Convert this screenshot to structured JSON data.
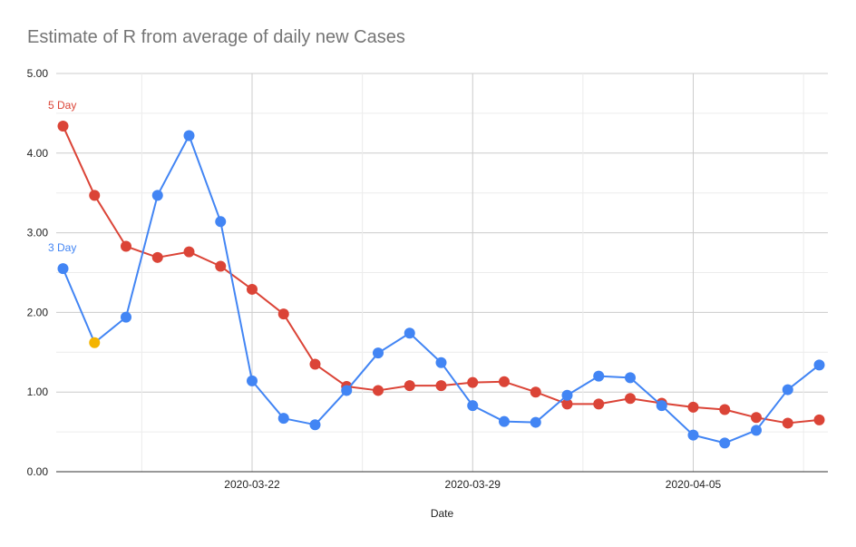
{
  "chart_data": {
    "type": "line",
    "title": "Estimate of R from average of daily new Cases",
    "xlabel": "Date",
    "ylabel": "",
    "ylim": [
      0,
      5
    ],
    "yticks": [
      "0.00",
      "1.00",
      "2.00",
      "3.00",
      "4.00",
      "5.00"
    ],
    "x_tick_labels": [
      {
        "label": "2020-03-22",
        "index": 6
      },
      {
        "label": "2020-03-29",
        "index": 13
      },
      {
        "label": "2020-04-05",
        "index": 20
      }
    ],
    "grid": true,
    "series": [
      {
        "name": "5 Day",
        "color": "#db4437",
        "values": [
          4.34,
          3.47,
          2.83,
          2.69,
          2.76,
          2.58,
          2.29,
          1.98,
          1.35,
          1.07,
          1.02,
          1.08,
          1.08,
          1.12,
          1.13,
          1.0,
          0.85,
          0.85,
          0.92,
          0.86,
          0.81,
          0.78,
          0.68,
          0.61,
          0.65
        ]
      },
      {
        "name": "3 Day",
        "color": "#4285f4",
        "values": [
          2.55,
          1.62,
          1.94,
          3.47,
          4.22,
          3.14,
          1.14,
          0.67,
          0.59,
          1.02,
          1.49,
          1.74,
          1.37,
          0.83,
          0.63,
          0.62,
          0.96,
          1.2,
          1.18,
          0.83,
          0.46,
          0.36,
          0.52,
          1.03,
          1.34
        ]
      }
    ],
    "highlight": {
      "series_index": 1,
      "point_index": 1,
      "color": "#f4b400"
    }
  }
}
